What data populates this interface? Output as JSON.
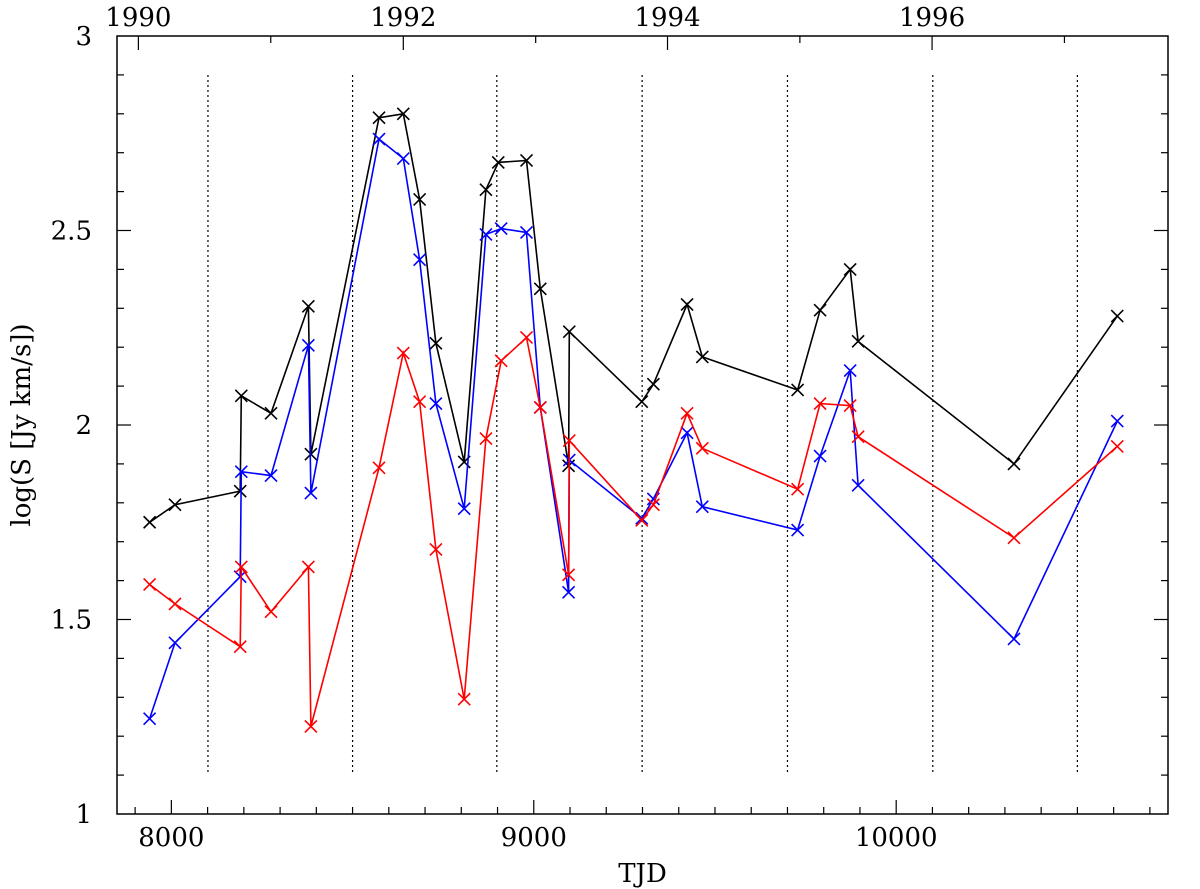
{
  "chart_data": {
    "type": "line",
    "title": "",
    "xlabel": "TJD",
    "ylabel": "log(S [Jy km/s])",
    "xlim": [
      7850,
      10750
    ],
    "ylim": [
      1,
      3
    ],
    "grid": false,
    "x_ticks": [
      8000,
      9000,
      10000
    ],
    "x_tick_labels": [
      "8000",
      "9000",
      "10000"
    ],
    "y_ticks": [
      1,
      1.5,
      2,
      2.5,
      3
    ],
    "y_tick_labels": [
      "1",
      "1.5",
      "2",
      "2.5",
      "3"
    ],
    "top_axis": {
      "tick_tjd": [
        7909,
        8640,
        9369,
        10099
      ],
      "tick_labels": [
        "1990",
        "1992",
        "1994",
        "1996"
      ]
    },
    "reference_lines_x": [
      8101,
      8500,
      8898,
      9299,
      9700,
      10101,
      10500
    ],
    "series": [
      {
        "color": "#000000",
        "x": [
          7940,
          8010,
          8190,
          8193,
          8275,
          8378,
          8385,
          8573,
          8640,
          8685,
          8730,
          8808,
          8868,
          8902,
          8980,
          9018,
          9096,
          9098,
          9298,
          9330,
          9423,
          9465,
          9728,
          9790,
          9873,
          9895,
          10325,
          10610
        ],
        "y": [
          1.75,
          1.795,
          1.83,
          2.075,
          2.03,
          2.305,
          1.925,
          2.79,
          2.8,
          2.58,
          2.21,
          1.905,
          2.605,
          2.675,
          2.68,
          2.35,
          1.895,
          2.24,
          2.06,
          2.105,
          2.31,
          2.175,
          2.09,
          2.295,
          2.4,
          2.215,
          1.9,
          2.28
        ]
      },
      {
        "color": "#0000ff",
        "x": [
          7940,
          8010,
          8190,
          8193,
          8275,
          8378,
          8385,
          8573,
          8640,
          8685,
          8730,
          8808,
          8868,
          8910,
          8980,
          9018,
          9096,
          9098,
          9298,
          9330,
          9423,
          9465,
          9728,
          9790,
          9873,
          9895,
          10325,
          10610
        ],
        "y": [
          1.245,
          1.44,
          1.61,
          1.88,
          1.87,
          2.205,
          1.825,
          2.735,
          2.685,
          2.425,
          2.055,
          1.785,
          2.49,
          2.505,
          2.495,
          2.045,
          1.57,
          1.91,
          1.76,
          1.81,
          1.98,
          1.79,
          1.73,
          1.92,
          2.14,
          1.845,
          1.45,
          2.01
        ]
      },
      {
        "color": "#ff0000",
        "x": [
          7940,
          8010,
          8190,
          8193,
          8275,
          8378,
          8385,
          8573,
          8640,
          8685,
          8730,
          8808,
          8868,
          8910,
          8980,
          9018,
          9096,
          9098,
          9298,
          9330,
          9423,
          9465,
          9728,
          9790,
          9873,
          9895,
          10325,
          10610
        ],
        "y": [
          1.59,
          1.54,
          1.43,
          1.635,
          1.52,
          1.635,
          1.225,
          1.89,
          2.185,
          2.06,
          1.68,
          1.295,
          1.965,
          2.165,
          2.225,
          2.045,
          1.615,
          1.96,
          1.755,
          1.795,
          2.03,
          1.94,
          1.835,
          2.055,
          2.05,
          1.97,
          1.71,
          1.945
        ]
      }
    ]
  }
}
